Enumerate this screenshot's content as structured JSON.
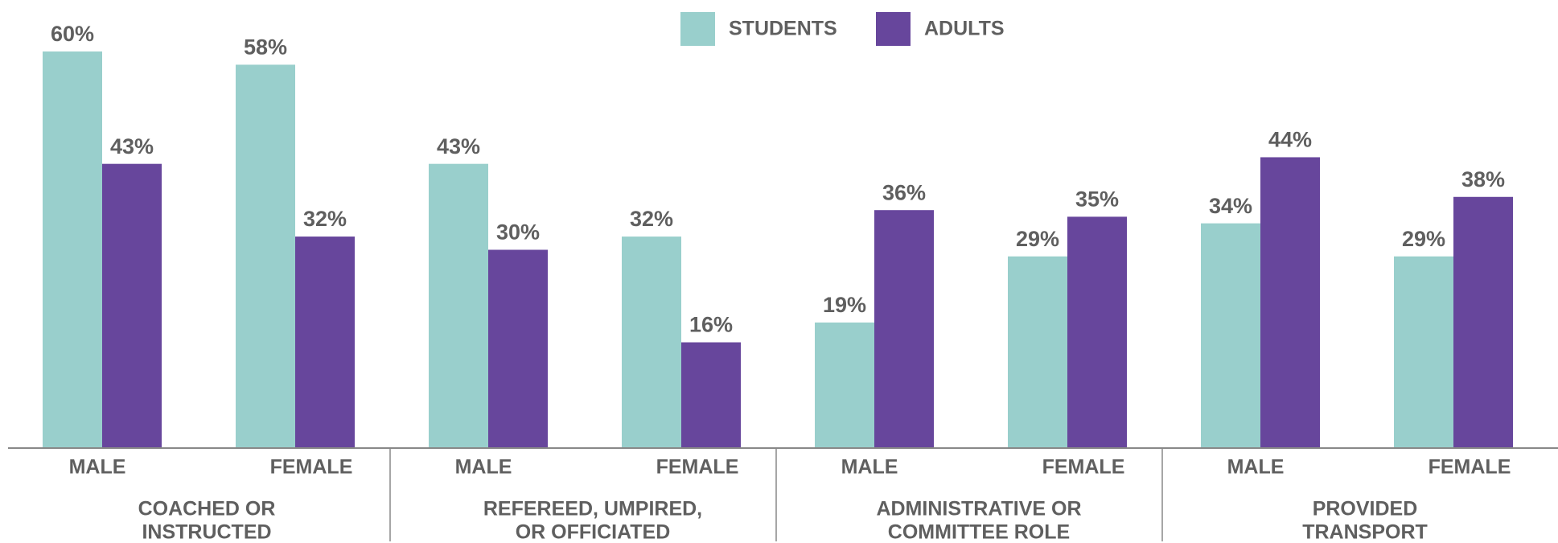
{
  "chart_data": {
    "type": "bar",
    "categories": [
      "MALE",
      "FEMALE",
      "MALE",
      "FEMALE",
      "MALE",
      "FEMALE",
      "MALE",
      "FEMALE"
    ],
    "groups": [
      [
        "COACHED OR",
        "INSTRUCTED"
      ],
      [
        "REFEREED, UMPIRED,",
        "OR OFFICIATED"
      ],
      [
        "ADMINISTRATIVE OR",
        "COMMITTEE ROLE"
      ],
      [
        "PROVIDED",
        "TRANSPORT"
      ]
    ],
    "series": [
      {
        "name": "STUDENTS",
        "color": "#99cfcc",
        "values": [
          60,
          58,
          43,
          32,
          19,
          29,
          34,
          29
        ],
        "value_labels": [
          "60%",
          "58%",
          "43%",
          "32%",
          "19%",
          "29%",
          "34%",
          "29%"
        ]
      },
      {
        "name": "ADULTS",
        "color": "#67469c",
        "values": [
          43,
          32,
          30,
          16,
          36,
          35,
          44,
          38
        ],
        "value_labels": [
          "43%",
          "32%",
          "30%",
          "16%",
          "36%",
          "35%",
          "44%",
          "38%"
        ]
      }
    ],
    "ylim": [
      0,
      60
    ]
  }
}
